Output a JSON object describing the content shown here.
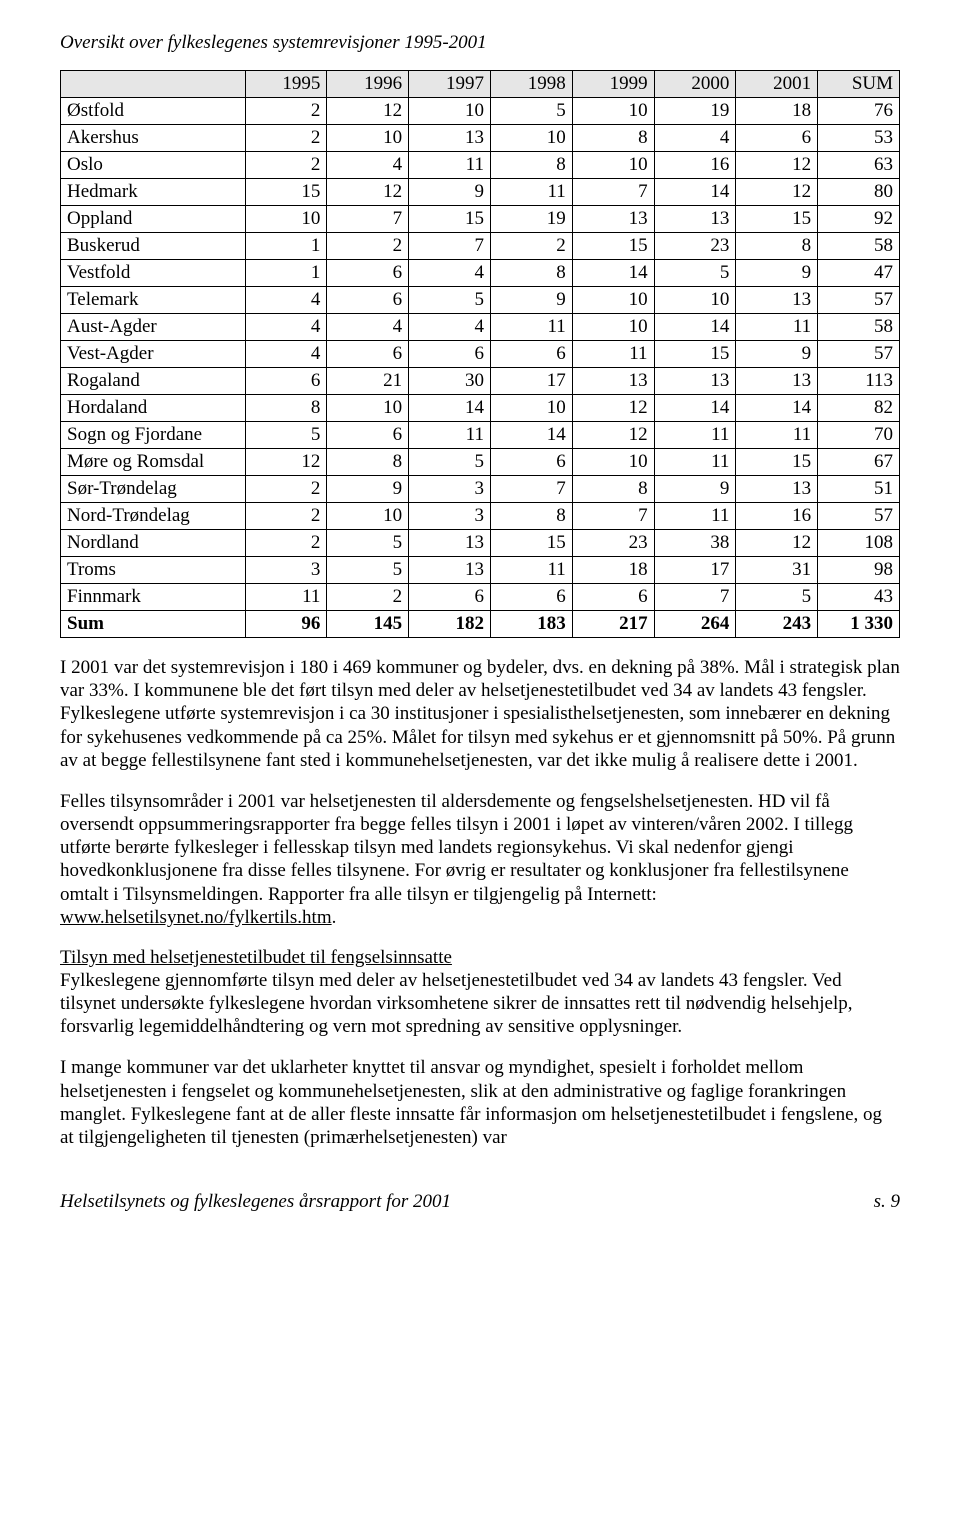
{
  "title": "Oversikt over fylkeslegenes systemrevisjoner 1995-2001",
  "columns": [
    "1995",
    "1996",
    "1997",
    "1998",
    "1999",
    "2000",
    "2001",
    "SUM"
  ],
  "rows": [
    {
      "label": "Østfold",
      "vals": [
        2,
        12,
        10,
        5,
        10,
        19,
        18,
        76
      ]
    },
    {
      "label": "Akershus",
      "vals": [
        2,
        10,
        13,
        10,
        8,
        4,
        6,
        53
      ]
    },
    {
      "label": "Oslo",
      "vals": [
        2,
        4,
        11,
        8,
        10,
        16,
        12,
        63
      ]
    },
    {
      "label": "Hedmark",
      "vals": [
        15,
        12,
        9,
        11,
        7,
        14,
        12,
        80
      ]
    },
    {
      "label": "Oppland",
      "vals": [
        10,
        7,
        15,
        19,
        13,
        13,
        15,
        92
      ]
    },
    {
      "label": "Buskerud",
      "vals": [
        1,
        2,
        7,
        2,
        15,
        23,
        8,
        58
      ]
    },
    {
      "label": "Vestfold",
      "vals": [
        1,
        6,
        4,
        8,
        14,
        5,
        9,
        47
      ]
    },
    {
      "label": "Telemark",
      "vals": [
        4,
        6,
        5,
        9,
        10,
        10,
        13,
        57
      ]
    },
    {
      "label": "Aust-Agder",
      "vals": [
        4,
        4,
        4,
        11,
        10,
        14,
        11,
        58
      ]
    },
    {
      "label": "Vest-Agder",
      "vals": [
        4,
        6,
        6,
        6,
        11,
        15,
        9,
        57
      ]
    },
    {
      "label": "Rogaland",
      "vals": [
        6,
        21,
        30,
        17,
        13,
        13,
        13,
        113
      ]
    },
    {
      "label": "Hordaland",
      "vals": [
        8,
        10,
        14,
        10,
        12,
        14,
        14,
        82
      ]
    },
    {
      "label": "Sogn og Fjordane",
      "vals": [
        5,
        6,
        11,
        14,
        12,
        11,
        11,
        70
      ]
    },
    {
      "label": "Møre og Romsdal",
      "vals": [
        12,
        8,
        5,
        6,
        10,
        11,
        15,
        67
      ]
    },
    {
      "label": "Sør-Trøndelag",
      "vals": [
        2,
        9,
        3,
        7,
        8,
        9,
        13,
        51
      ]
    },
    {
      "label": "Nord-Trøndelag",
      "vals": [
        2,
        10,
        3,
        8,
        7,
        11,
        16,
        57
      ]
    },
    {
      "label": "Nordland",
      "vals": [
        2,
        5,
        13,
        15,
        23,
        38,
        12,
        108
      ]
    },
    {
      "label": "Troms",
      "vals": [
        3,
        5,
        13,
        11,
        18,
        17,
        31,
        98
      ]
    },
    {
      "label": "Finnmark",
      "vals": [
        11,
        2,
        6,
        6,
        6,
        7,
        5,
        43
      ]
    }
  ],
  "sumrow": {
    "label": "Sum",
    "vals": [
      96,
      145,
      182,
      183,
      217,
      264,
      243,
      "1 330"
    ]
  },
  "para1": "I 2001 var det systemrevisjon i 180 i 469 kommuner og bydeler, dvs. en dekning på 38%. Mål i strategisk plan var 33%. I kommunene ble det ført tilsyn med deler av helsetjenestetilbudet ved 34 av landets 43 fengsler. Fylkeslegene utførte systemrevisjon i ca 30 institusjoner i spesialisthelsetjenesten, som innebærer en dekning for sykehusenes vedkommende på ca 25%. Målet for tilsyn med sykehus er et gjennomsnitt på 50%. På grunn av at begge fellestilsynene fant sted i kommunehelsetjenesten, var det ikke mulig å realisere dette i 2001.",
  "para2_pre": "Felles tilsynsområder i 2001 var helsetjenesten til aldersdemente og fengselshelsetjenesten. HD vil få oversendt oppsummeringsrapporter fra begge felles tilsyn i 2001 i løpet av vinteren/våren 2002. I tillegg utførte berørte fylkesleger i fellesskap tilsyn med landets regionsykehus. Vi skal nedenfor gjengi hovedkonklusjonene fra disse felles tilsynene. For øvrig er resultater og konklusjoner fra fellestilsynene omtalt i Tilsynsmeldingen. Rapporter fra alle tilsyn er tilgjengelig på Internett: ",
  "para2_link": "www.helsetilsynet.no/fylkertils.htm",
  "para2_post": ".",
  "subhead": "Tilsyn med helsetjenestetilbudet til fengselsinnsatte",
  "para3": "Fylkeslegene gjennomførte tilsyn med deler av helsetjenestetilbudet  ved 34 av landets 43 fengsler. Ved tilsynet undersøkte fylkeslegene hvordan virksomhetene sikrer de innsattes rett til nødvendig helsehjelp, forsvarlig legemiddelhåndtering og vern mot spredning av sensitive opplysninger.",
  "para4": "I mange kommuner var det uklarheter knyttet til ansvar og myndighet, spesielt i forholdet mellom helsetjenesten i fengselet og kommunehelsetjenesten, slik at den administrative og faglige forankringen manglet. Fylkeslegene fant at de aller fleste innsatte får informasjon om helsetjenestetilbudet i fengslene, og at tilgjengeligheten til tjenesten (primærhelsetjenesten) var",
  "footer_left": "Helsetilsynets og fylkeslegenes årsrapport for 2001",
  "footer_right": "s. 9"
}
